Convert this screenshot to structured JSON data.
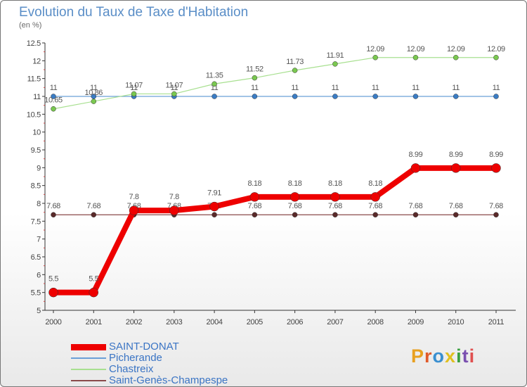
{
  "title": "Evolution du Taux de Taxe d'Habitation",
  "unit": "(en %)",
  "logo": {
    "text": "Proxiti",
    "colors": [
      "#e8a020",
      "#e05a2a",
      "#3a8fd0",
      "#e0c020",
      "#3aa040",
      "#7a50b0",
      "#e05050"
    ]
  },
  "chart_data": {
    "type": "line",
    "x": [
      "2000",
      "2001",
      "2002",
      "2003",
      "2004",
      "2005",
      "2006",
      "2007",
      "2008",
      "2009",
      "2010",
      "2011"
    ],
    "ylim": [
      5,
      12.5
    ],
    "yticks": [
      "5",
      "5.5",
      "6",
      "6.5",
      "7",
      "7.5",
      "8",
      "8.5",
      "9",
      "9.5",
      "10",
      "10.5",
      "11",
      "11.5",
      "12",
      "12.5"
    ],
    "grid": false,
    "legend_position": "bottom-left",
    "series": [
      {
        "name": "Picherande",
        "color": "#6aa0d8",
        "dot": "#3a7cc4",
        "width": 1.2,
        "r": 3.5,
        "values": [
          11,
          11,
          11,
          11,
          11,
          11,
          11,
          11,
          11,
          11,
          11,
          11
        ],
        "labels": [
          "11",
          "11",
          "11",
          "11",
          "11",
          "11",
          "11",
          "11",
          "11",
          "11",
          "11",
          "11"
        ]
      },
      {
        "name": "Chastreix",
        "color": "#a8e090",
        "dot": "#7ac850",
        "width": 1.2,
        "r": 3.5,
        "values": [
          10.65,
          10.86,
          11.07,
          11.07,
          11.35,
          11.52,
          11.73,
          11.91,
          12.09,
          12.09,
          12.09,
          12.09
        ],
        "labels": [
          "10.65",
          "10.86",
          "11.07",
          "11.07",
          "11.35",
          "11.52",
          "11.73",
          "11.91",
          "12.09",
          "12.09",
          "12.09",
          "12.09"
        ]
      },
      {
        "name": "Saint-Genès-Champespe",
        "color": "#8a4a4a",
        "dot": "#5a2a2a",
        "width": 1.2,
        "r": 3.5,
        "values": [
          7.68,
          7.68,
          7.68,
          7.68,
          7.68,
          7.68,
          7.68,
          7.68,
          7.68,
          7.68,
          7.68,
          7.68
        ],
        "labels": [
          "7.68",
          "7.68",
          "7.68",
          "7.68",
          "7.68",
          "7.68",
          "7.68",
          "7.68",
          "7.68",
          "7.68",
          "7.68",
          "7.68"
        ]
      },
      {
        "name": "SAINT-DONAT",
        "color": "#ee0000",
        "dot": "#ee0000",
        "width": 8,
        "r": 6.5,
        "values": [
          5.5,
          5.5,
          7.8,
          7.8,
          7.91,
          8.18,
          8.18,
          8.18,
          8.18,
          8.99,
          8.99,
          8.99
        ],
        "labels": [
          "5.5",
          "5.5",
          "7.8",
          "7.8",
          "7.91",
          "8.18",
          "8.18",
          "8.18",
          "8.18",
          "8.99",
          "8.99",
          "8.99"
        ]
      }
    ],
    "legend_order": [
      "SAINT-DONAT",
      "Picherande",
      "Chastreix",
      "Saint-Genès-Champespe"
    ]
  }
}
